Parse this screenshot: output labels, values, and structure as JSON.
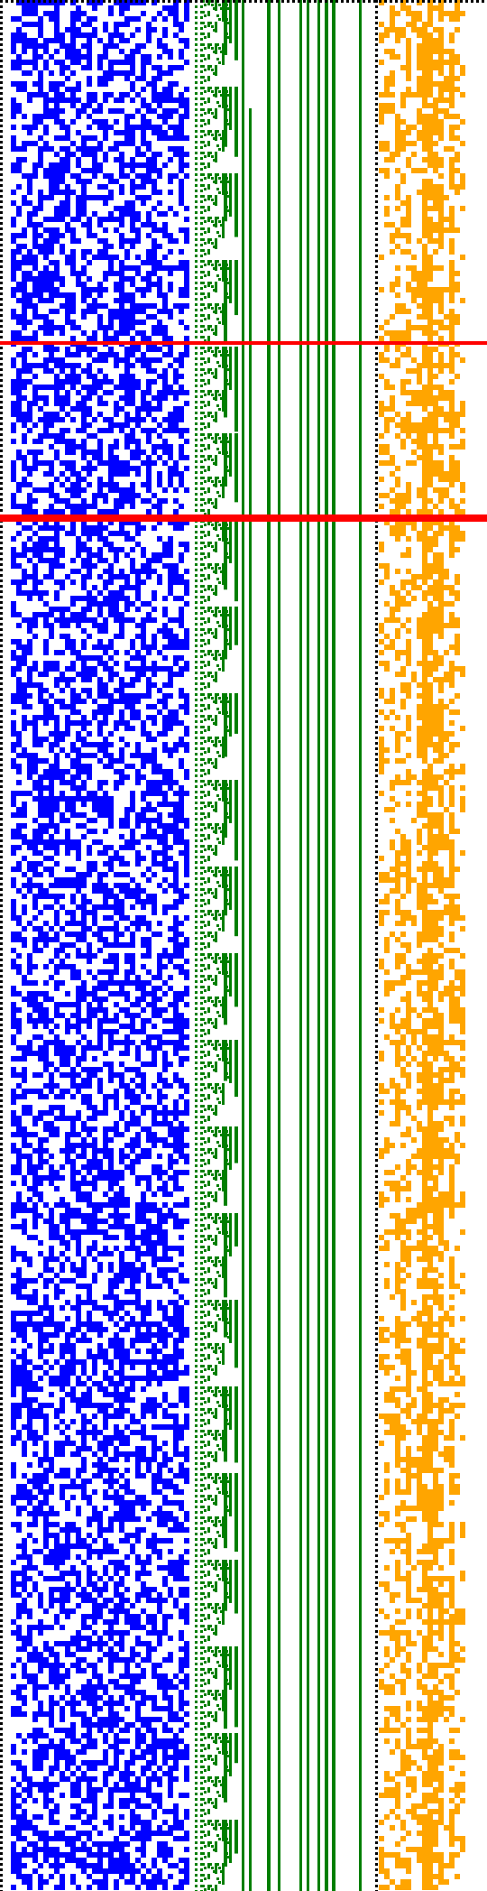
{
  "palette": {
    "background": "#ffffff",
    "blue": "#0000ff",
    "green": "#007f00",
    "orange": "#ffa500",
    "red": "#ff0000",
    "black": "#000000"
  },
  "panels": {
    "left": {
      "name": "blue-random-grid",
      "density": 0.56
    },
    "middle": {
      "name": "green-binary-tree",
      "branching": "binary",
      "levels": 5
    },
    "right": {
      "name": "orange-column-pattern",
      "density": 0.52,
      "columns": 16
    }
  },
  "separators": [
    {
      "name": "red-separator-1",
      "style": "thin"
    },
    {
      "name": "red-separator-2",
      "style": "thick"
    }
  ],
  "borders": {
    "top": "dotted",
    "left": "dotted",
    "divider": "dotted"
  }
}
